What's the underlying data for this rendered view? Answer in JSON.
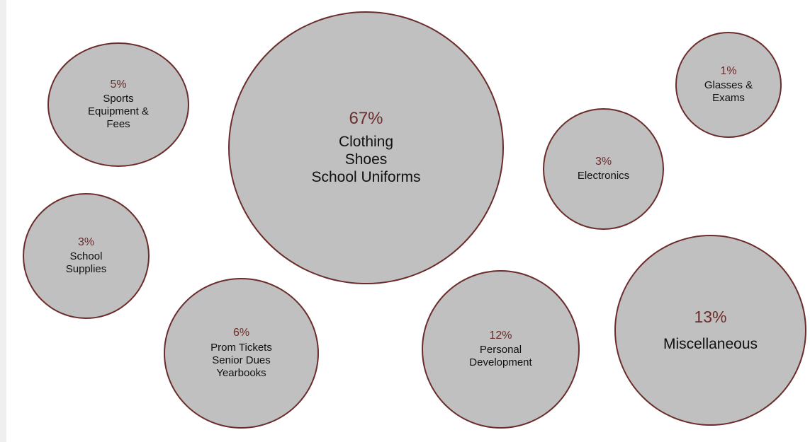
{
  "chart_data": {
    "type": "bubble",
    "accent_color": "#6b2c2c",
    "bubble_fill": "#c0c0c0",
    "items": [
      {
        "key": "sports",
        "percent": "5%",
        "value": 5,
        "label": "Sports\nEquipment &\nFees"
      },
      {
        "key": "clothing",
        "percent": "67%",
        "value": 67,
        "label": "Clothing\nShoes\nSchool Uniforms"
      },
      {
        "key": "glasses",
        "percent": "1%",
        "value": 1,
        "label": "Glasses &\nExams"
      },
      {
        "key": "electronics",
        "percent": "3%",
        "value": 3,
        "label": "Electronics"
      },
      {
        "key": "supplies",
        "percent": "3%",
        "value": 3,
        "label": "School\nSupplies"
      },
      {
        "key": "prom",
        "percent": "6%",
        "value": 6,
        "label": "Prom Tickets\nSenior Dues\nYearbooks"
      },
      {
        "key": "personal",
        "percent": "12%",
        "value": 12,
        "label": "Personal\nDevelopment"
      },
      {
        "key": "misc",
        "percent": "13%",
        "value": 13,
        "label": "Miscellaneous"
      }
    ]
  }
}
